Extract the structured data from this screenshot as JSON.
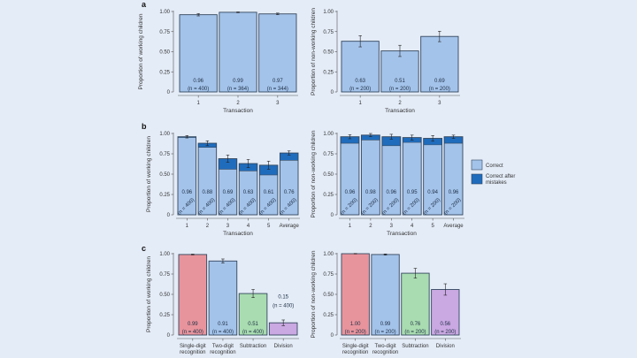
{
  "colors": {
    "background": "#e4ecf7",
    "correct": "#a4c3ea",
    "correct_after_mistakes": "#1f6cbd",
    "outline": "#33475f",
    "red": "#e8949d",
    "blue": "#a4c3ea",
    "green": "#a9dcb0",
    "purple": "#caa8e2"
  },
  "legend": {
    "items": [
      "Correct",
      "Correct after mistakes"
    ]
  },
  "chart_data": [
    {
      "panel": "a",
      "type": "bar",
      "xlabel": "Transaction",
      "ylabel": "Proportion of working children",
      "ylim": [
        0,
        1
      ],
      "yticks": [
        "0",
        "0.25",
        "0.50",
        "0.75",
        "1.00"
      ],
      "categories": [
        "1",
        "2",
        "3"
      ],
      "values": [
        0.96,
        0.99,
        0.97
      ],
      "errors": [
        0.015,
        0.005,
        0.01
      ],
      "labels": [
        "0.96",
        "0.99",
        "0.97"
      ],
      "n": [
        "(n = 400)",
        "(n = 364)",
        "(n = 344)"
      ],
      "bar_colors": [
        "correct",
        "correct",
        "correct"
      ]
    },
    {
      "panel": "",
      "type": "bar",
      "xlabel": "Transaction",
      "ylabel": "Proportion of non-working children",
      "ylim": [
        0,
        1
      ],
      "yticks": [
        "0",
        "0.25",
        "0.50",
        "0.75",
        "1.00"
      ],
      "categories": [
        "1",
        "2",
        "3"
      ],
      "values": [
        0.63,
        0.51,
        0.69
      ],
      "errors": [
        0.07,
        0.07,
        0.065
      ],
      "labels": [
        "0.63",
        "0.51",
        "0.69"
      ],
      "n": [
        "(n = 200)",
        "(n = 200)",
        "(n = 200)"
      ],
      "bar_colors": [
        "correct",
        "correct",
        "correct"
      ]
    },
    {
      "panel": "b",
      "type": "bar",
      "stacked": true,
      "xlabel": "Transaction",
      "ylabel": "Proportion of working children",
      "ylim": [
        0,
        1
      ],
      "yticks": [
        "0",
        "0.25",
        "0.50",
        "0.75",
        "1.00"
      ],
      "categories": [
        "1",
        "2",
        "3",
        "4",
        "5",
        "Average"
      ],
      "values": [
        0.96,
        0.88,
        0.69,
        0.63,
        0.61,
        0.76
      ],
      "correct": [
        0.95,
        0.83,
        0.56,
        0.54,
        0.49,
        0.67
      ],
      "errors": [
        0.015,
        0.03,
        0.045,
        0.05,
        0.05,
        0.025
      ],
      "labels": [
        "0.96",
        "0.88",
        "0.69",
        "0.63",
        "0.61",
        "0.76"
      ],
      "n": [
        "(n = 400)",
        "(n = 400)",
        "(n = 400)",
        "(n = 400)",
        "(n = 400)",
        "(n = 400)"
      ]
    },
    {
      "panel": "",
      "type": "bar",
      "stacked": true,
      "xlabel": "Transaction",
      "ylabel": "Proportion of non-working children",
      "ylim": [
        0,
        1
      ],
      "yticks": [
        "0",
        "0.25",
        "0.50",
        "0.75",
        "1.00"
      ],
      "categories": [
        "1",
        "2",
        "3",
        "4",
        "5",
        "Average"
      ],
      "values": [
        0.96,
        0.98,
        0.96,
        0.95,
        0.94,
        0.96
      ],
      "correct": [
        0.88,
        0.92,
        0.85,
        0.89,
        0.86,
        0.88
      ],
      "errors": [
        0.025,
        0.02,
        0.03,
        0.03,
        0.035,
        0.02
      ],
      "labels": [
        "0.96",
        "0.98",
        "0.96",
        "0.95",
        "0.94",
        "0.96"
      ],
      "n": [
        "(n = 200)",
        "(n = 200)",
        "(n = 200)",
        "(n = 200)",
        "(n = 200)",
        "(n = 200)"
      ]
    },
    {
      "panel": "c",
      "type": "bar",
      "xlabel": "",
      "ylabel": "Proportion of working children",
      "ylim": [
        0,
        1
      ],
      "yticks": [
        "0",
        "0.25",
        "0.50",
        "0.75",
        "1.00"
      ],
      "categories": [
        "Single-digit recognition",
        "Two-digit recognition",
        "Subtraction",
        "Division"
      ],
      "values": [
        0.99,
        0.91,
        0.51,
        0.15
      ],
      "errors": [
        0.005,
        0.025,
        0.05,
        0.035
      ],
      "labels": [
        "0.99",
        "0.91",
        "0.51",
        "0.15"
      ],
      "n": [
        "(n = 400)",
        "(n = 400)",
        "(n = 400)",
        "(n = 400)"
      ],
      "bar_colors": [
        "red",
        "blue",
        "green",
        "purple"
      ]
    },
    {
      "panel": "",
      "type": "bar",
      "xlabel": "",
      "ylabel": "Proportion of non-working children",
      "ylim": [
        0,
        1
      ],
      "yticks": [
        "0",
        "0.25",
        "0.50",
        "0.75",
        "1.00"
      ],
      "categories": [
        "Single-digit recognition",
        "Two-digit recognition",
        "Subtraction",
        "Division"
      ],
      "values": [
        1.0,
        0.99,
        0.76,
        0.56
      ],
      "errors": [
        0.003,
        0.007,
        0.06,
        0.07
      ],
      "labels": [
        "1.00",
        "0.99",
        "0.76",
        "0.56"
      ],
      "n": [
        "(n = 200)",
        "(n = 200)",
        "(n = 200)",
        "(n = 200)"
      ],
      "bar_colors": [
        "red",
        "blue",
        "green",
        "purple"
      ]
    }
  ]
}
